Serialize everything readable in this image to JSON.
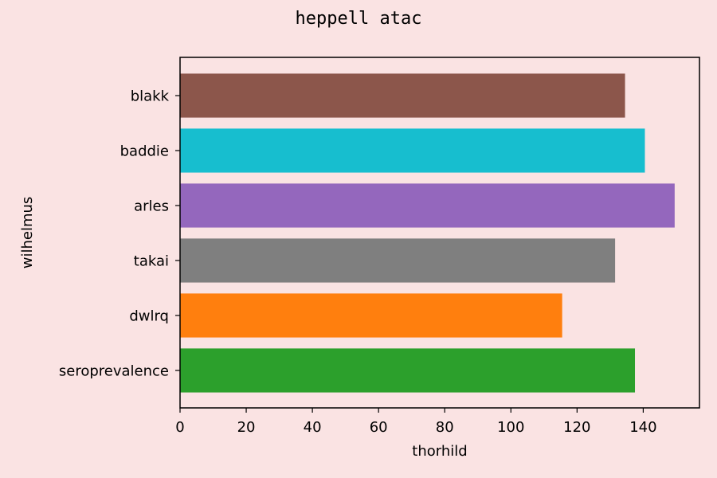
{
  "chart_data": {
    "type": "bar",
    "orientation": "horizontal",
    "title": "heppell atac",
    "xlabel": "thorhild",
    "ylabel": "wilhelmus",
    "categories": [
      "seroprevalence",
      "dwlrq",
      "takai",
      "arles",
      "baddie",
      "blakk"
    ],
    "values": [
      137.5,
      115.5,
      131.5,
      149.5,
      140.5,
      134.5
    ],
    "colors": [
      "#2ca02c",
      "#ff7f0e",
      "#7f7f7f",
      "#9467bd",
      "#17becf",
      "#8c564b"
    ],
    "xlim": [
      0,
      157
    ],
    "xticks": [
      0,
      20,
      40,
      60,
      80,
      100,
      120,
      140
    ],
    "grid": false,
    "background": "#fae3e3"
  }
}
